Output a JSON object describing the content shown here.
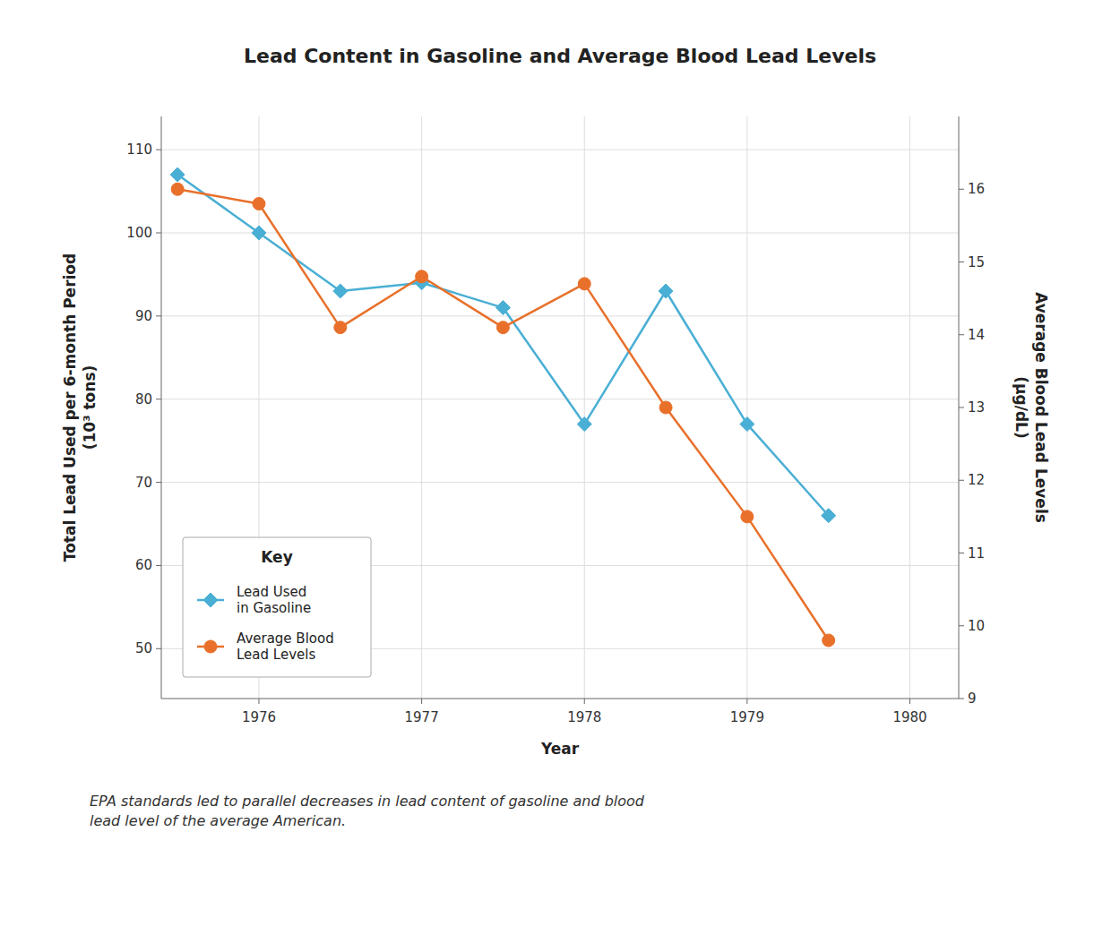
{
  "chart_data": {
    "type": "line",
    "title": "Lead Content in Gasoline and Average Blood Lead Levels",
    "caption": "EPA standards led to parallel decreases in lead content of gasoline and blood\nlead level of the average American.",
    "xlabel": "Year",
    "ylabel": "Total Lead Used per 6-month Period\n(10³ tons)",
    "y2label": "Average Blood Lead Levels\n(μg/dL)",
    "x": [
      1975.5,
      1976.0,
      1976.5,
      1977.0,
      1977.5,
      1978.0,
      1978.5,
      1979.0,
      1979.5
    ],
    "xlim": [
      1975.4,
      1980.3
    ],
    "xticks": [
      1976,
      1977,
      1978,
      1979,
      1980
    ],
    "ylim": [
      44,
      114
    ],
    "yticks": [
      50,
      60,
      70,
      80,
      90,
      100,
      110
    ],
    "y2lim": [
      9,
      17
    ],
    "y2ticks": [
      9,
      10,
      11,
      12,
      13,
      14,
      15,
      16
    ],
    "grid": true,
    "legend": "lower left",
    "legend_title": "Key",
    "series": [
      {
        "name": "Lead Used\nin Gasoline",
        "color": "#4AAFD4",
        "marker": "diamond",
        "axis": "y",
        "values": [
          107,
          100,
          93,
          94,
          91,
          77,
          93,
          77,
          66
        ]
      },
      {
        "name": "Average Blood\nLead Levels",
        "color": "#E8702A",
        "marker": "circle",
        "axis": "y2",
        "values": [
          16.0,
          15.8,
          14.1,
          14.8,
          14.1,
          14.7,
          13.0,
          11.5,
          9.8
        ]
      }
    ]
  }
}
